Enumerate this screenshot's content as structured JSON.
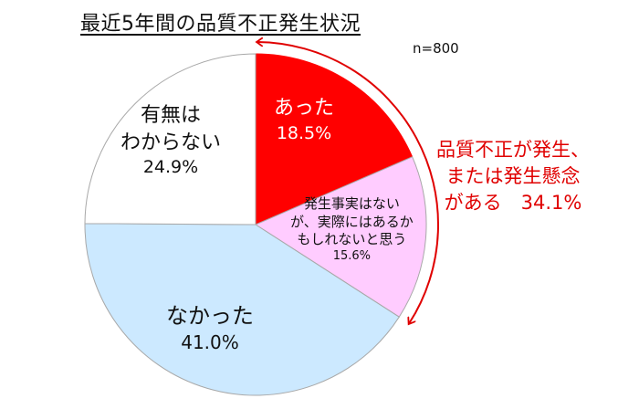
{
  "title": "最近5年間の品質不正発生状況",
  "sample": "n=800",
  "colors": {
    "atta": "#ff0000",
    "possible": "#ffccff",
    "nakatta": "#cce9ff",
    "unknown": "#ffffff",
    "callout": "#e00000"
  },
  "labels": {
    "atta": {
      "name": "あった",
      "pct": "18.5%"
    },
    "possible": {
      "line1": "発生事実はない",
      "line2": "が、実際にはあるか",
      "line3": "もしれないと思う",
      "pct": "15.6%"
    },
    "nakatta": {
      "name": "なかった",
      "pct": "41.0%"
    },
    "unknown": {
      "line1": "有無は",
      "line2": "わからない",
      "pct": "24.9%"
    }
  },
  "callout": {
    "line1": "品質不正が発生、",
    "line2": "または発生懸念",
    "line3": "がある　34.1%"
  },
  "chart_data": {
    "type": "pie",
    "title": "最近5年間の品質不正発生状況",
    "subtitle": "n=800",
    "categories": [
      "あった",
      "発生事実はないが、実際にはあるかもしれないと思う",
      "なかった",
      "有無はわからない"
    ],
    "values": [
      18.5,
      15.6,
      41.0,
      24.9
    ],
    "colors": [
      "#ff0000",
      "#ffccff",
      "#cce9ff",
      "#ffffff"
    ],
    "start_angle": "12 o'clock, clockwise",
    "annotations": [
      {
        "text": "品質不正が発生、または発生懸念がある 34.1%",
        "spans": [
          "あった",
          "発生事実はないが、実際にはあるかもしれないと思う"
        ],
        "style": "red double-headed arc arrow"
      }
    ]
  }
}
